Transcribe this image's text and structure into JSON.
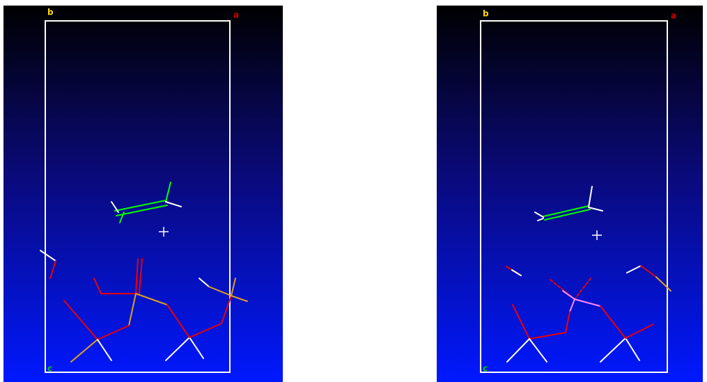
{
  "panels": [
    {
      "labels": {
        "top_left": "b",
        "top_right": "a",
        "bottom_left": "c"
      }
    },
    {
      "labels": {
        "top_left": "b",
        "top_right": "a",
        "bottom_left": "c"
      }
    }
  ]
}
